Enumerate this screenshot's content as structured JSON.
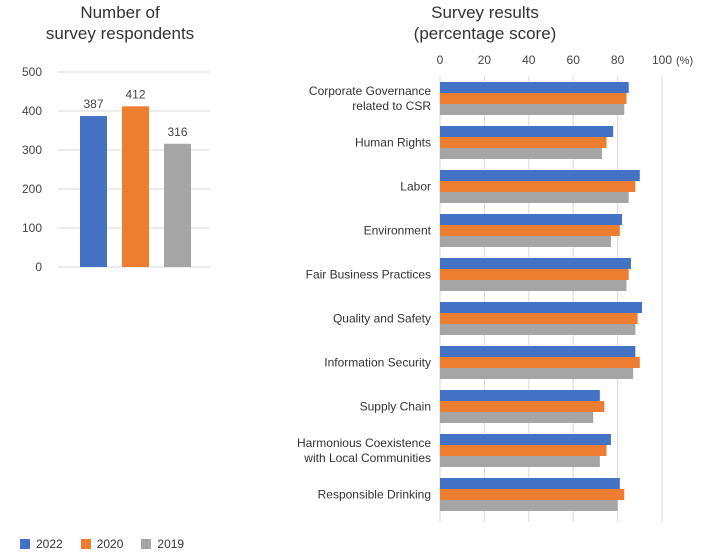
{
  "left_chart_title": [
    "Number of",
    "survey respondents"
  ],
  "right_chart_title": [
    "Survey results",
    "(percentage score)"
  ],
  "colors": {
    "2022": "#4472c4",
    "2020": "#ed7d31",
    "2019": "#a5a5a5"
  },
  "chart_data": [
    {
      "type": "bar",
      "title": "Number of survey respondents",
      "categories": [
        "2022",
        "2020",
        "2019"
      ],
      "values": [
        387,
        412,
        316
      ],
      "data_labels": [
        "387",
        "412",
        "316"
      ],
      "ylim": [
        0,
        500
      ],
      "yticks": [
        "0",
        "100",
        "200",
        "300",
        "400",
        "500"
      ],
      "grid": true
    },
    {
      "type": "bar",
      "orientation": "horizontal",
      "title": "Survey results (percentage score)",
      "categories": [
        [
          "Corporate Governance",
          "related to CSR"
        ],
        [
          "Human Rights"
        ],
        [
          "Labor"
        ],
        [
          "Environment"
        ],
        [
          "Fair Business Practices"
        ],
        [
          "Quality and Safety"
        ],
        [
          "Information Security"
        ],
        [
          "Supply Chain"
        ],
        [
          "Harmonious Coexistence",
          "with Local Communities"
        ],
        [
          "Responsible Drinking"
        ]
      ],
      "series": [
        {
          "name": "2022",
          "values": [
            85,
            78,
            90,
            82,
            86,
            91,
            88,
            72,
            77,
            81
          ]
        },
        {
          "name": "2020",
          "values": [
            84,
            75,
            88,
            81,
            85,
            89,
            90,
            74,
            75,
            83
          ]
        },
        {
          "name": "2019",
          "values": [
            83,
            73,
            85,
            77,
            84,
            88,
            87,
            69,
            72,
            80
          ]
        }
      ],
      "xlim": [
        0,
        100
      ],
      "xticks": [
        "0",
        "20",
        "40",
        "60",
        "80",
        "100"
      ],
      "x_unit": "(%)",
      "grid": true
    }
  ],
  "legend": [
    {
      "label": "2022",
      "color": "#4472c4"
    },
    {
      "label": "2020",
      "color": "#ed7d31"
    },
    {
      "label": "2019",
      "color": "#a5a5a5"
    }
  ]
}
